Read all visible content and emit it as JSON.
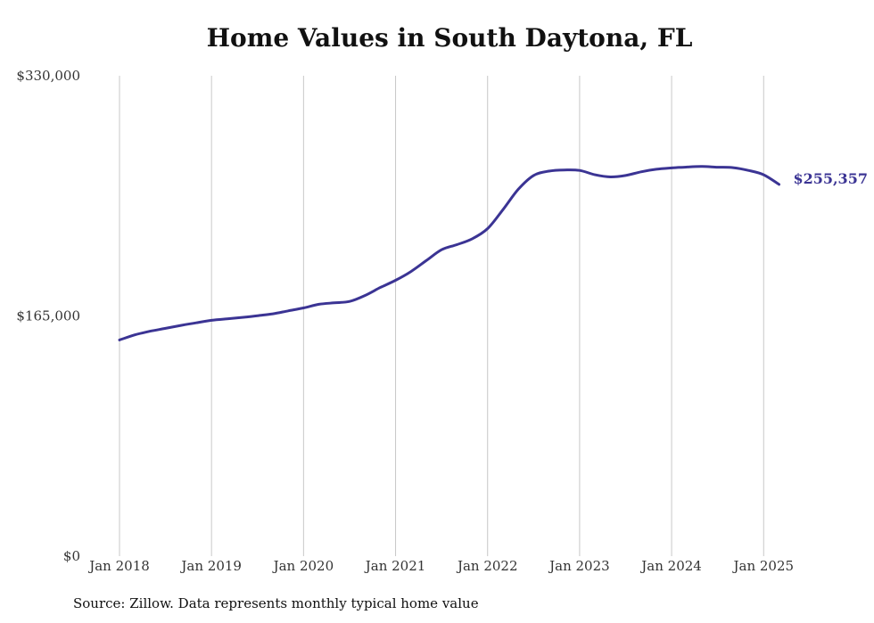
{
  "chart_data": {
    "type": "line",
    "title": "Home Values in South Daytona, FL",
    "xlabel": "",
    "ylabel": "",
    "ylim": [
      0,
      330000
    ],
    "y_ticks": [
      {
        "value": 0,
        "label": "$0"
      },
      {
        "value": 165000,
        "label": "$165,000"
      },
      {
        "value": 330000,
        "label": "$330,000"
      }
    ],
    "x_ticks": [
      {
        "value": 2018,
        "label": "Jan 2018"
      },
      {
        "value": 2019,
        "label": "Jan 2019"
      },
      {
        "value": 2020,
        "label": "Jan 2020"
      },
      {
        "value": 2021,
        "label": "Jan 2021"
      },
      {
        "value": 2022,
        "label": "Jan 2022"
      },
      {
        "value": 2023,
        "label": "Jan 2023"
      },
      {
        "value": 2024,
        "label": "Jan 2024"
      },
      {
        "value": 2025,
        "label": "Jan 2025"
      }
    ],
    "xlim": [
      2018,
      2025.167
    ],
    "grid": "vertical",
    "color": "#3b3494",
    "series": [
      {
        "x": [
          "2018-01",
          "2018-03",
          "2018-05",
          "2018-07",
          "2018-09",
          "2018-11",
          "2019-01",
          "2019-03",
          "2019-05",
          "2019-07",
          "2019-09",
          "2019-11",
          "2020-01",
          "2020-03",
          "2020-05",
          "2020-07",
          "2020-09",
          "2020-11",
          "2021-01",
          "2021-03",
          "2021-05",
          "2021-07",
          "2021-09",
          "2021-11",
          "2022-01",
          "2022-03",
          "2022-05",
          "2022-07",
          "2022-09",
          "2022-11",
          "2023-01",
          "2023-03",
          "2023-05",
          "2023-07",
          "2023-09",
          "2023-11",
          "2024-01",
          "2024-03",
          "2024-05",
          "2024-07",
          "2024-09",
          "2024-11",
          "2025-01",
          "2025-03"
        ],
        "values": [
          148500,
          152000,
          154500,
          156500,
          158500,
          160300,
          162000,
          163000,
          164000,
          165200,
          166500,
          168500,
          170500,
          173000,
          174000,
          175000,
          179000,
          184500,
          189500,
          195500,
          203000,
          210500,
          214000,
          218000,
          225000,
          238000,
          252000,
          261500,
          264500,
          265300,
          265000,
          262000,
          260500,
          261500,
          264000,
          265800,
          266700,
          267300,
          267700,
          267200,
          266900,
          265000,
          262000,
          255357
        ]
      }
    ],
    "end_label": "$255,357"
  },
  "source_note": "Source: Zillow. Data represents monthly typical home value"
}
